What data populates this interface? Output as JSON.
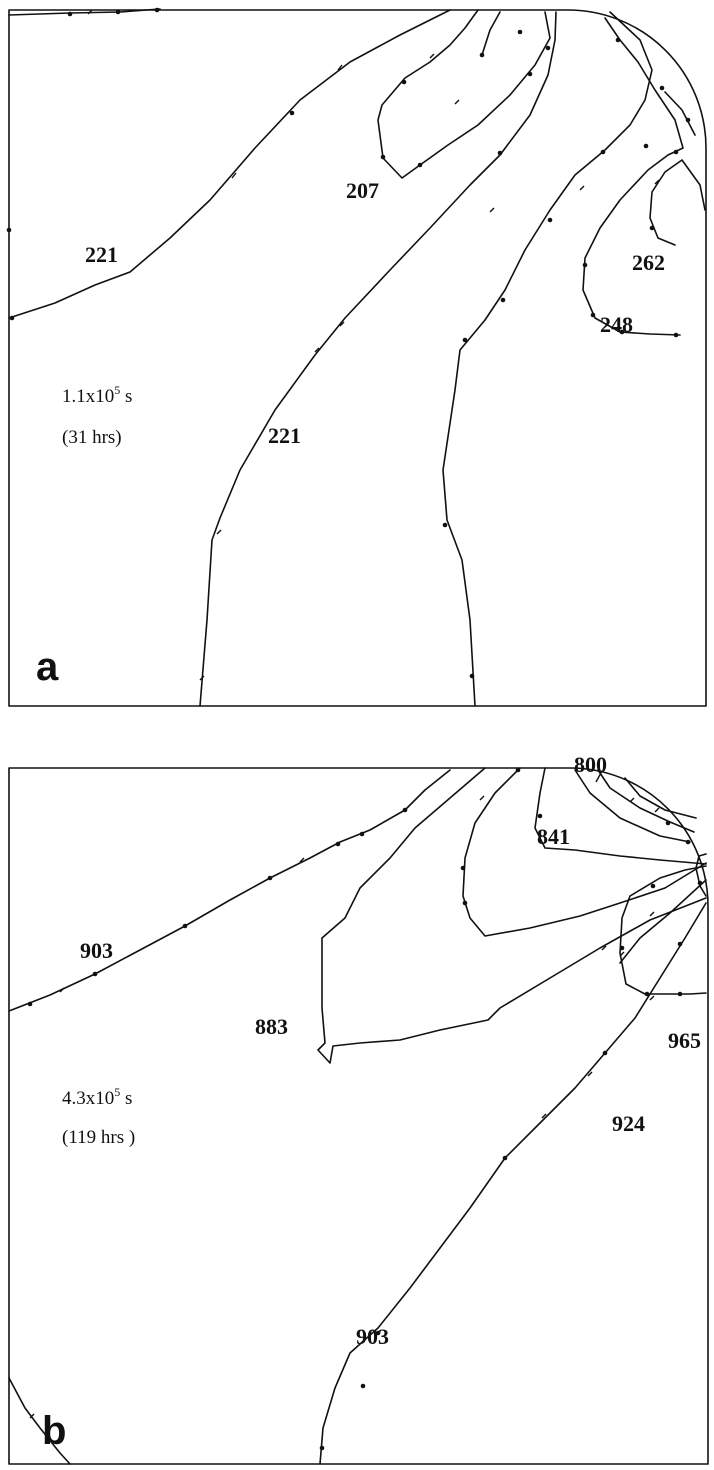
{
  "panels": {
    "a": {
      "letter": "a",
      "time_line1": "1.1x10",
      "time_sup": "5",
      "time_unit": " s",
      "time_line2": "(31 hrs)",
      "labels": [
        "207",
        "221",
        "262",
        "248",
        "221"
      ]
    },
    "b": {
      "letter": "b",
      "time_line1": "4.3x10",
      "time_sup": "5",
      "time_unit": " s",
      "time_line2": "(119 hrs )",
      "labels": [
        "800",
        "841",
        "903",
        "883",
        "965",
        "924",
        "903"
      ]
    }
  }
}
